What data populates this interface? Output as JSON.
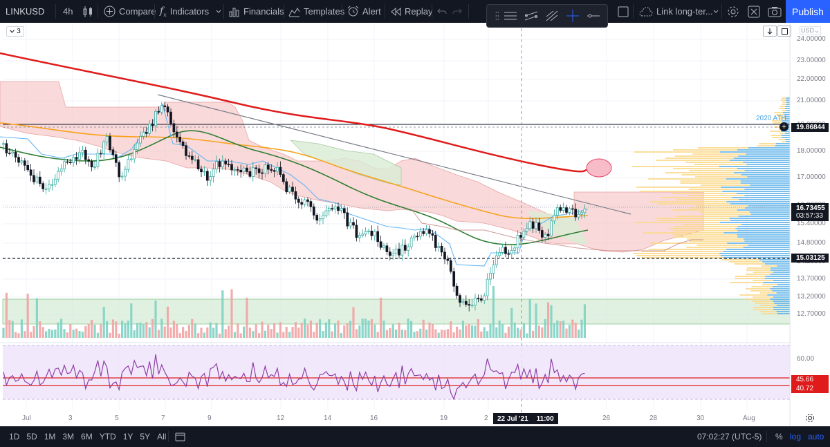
{
  "toolbar": {
    "symbol": "LINKUSD",
    "interval": "4h",
    "compare": "Compare",
    "indicators": "Indicators",
    "financials": "Financials",
    "templates": "Templates",
    "alert": "Alert",
    "replay": "Replay",
    "layout_name": "Link long-ter...",
    "publish": "Publish"
  },
  "legend": {
    "collapsed_count": "3"
  },
  "chart": {
    "currency": "USD",
    "price_axis": [
      "24.00000",
      "23.00000",
      "22.00000",
      "21.00000",
      "19.00000",
      "18.00000",
      "17.00000",
      "16.00000",
      "15.40000",
      "14.80000",
      "14.20000",
      "13.70000",
      "13.20000",
      "12.70000"
    ],
    "time_axis": [
      "Jul",
      "3",
      "5",
      "7",
      "9",
      "12",
      "14",
      "16",
      "19",
      "2",
      "22 Jul '21",
      "11:00",
      "26",
      "28",
      "30",
      "Aug"
    ],
    "ath_label": "2020 ATH",
    "ath_price": "19.86844",
    "last_price": "16.73455",
    "countdown": "03:57:33",
    "support_price": "15.03125",
    "rsi_axis": "60.00",
    "rsi_value_1": "45.66",
    "rsi_value_2": "40.72"
  },
  "bottom": {
    "ranges": [
      "1D",
      "5D",
      "1M",
      "3M",
      "6M",
      "YTD",
      "1Y",
      "5Y",
      "All"
    ],
    "clock": "07:02:27 (UTC-5)",
    "percent": "%",
    "log": "log",
    "auto": "auto"
  },
  "colors": {
    "accent": "#2962ff",
    "up": "#26a69a",
    "down": "#131722",
    "sma200": "#e01b1b",
    "ema": "#f7a21b",
    "green_line": "#2e7d32"
  }
}
